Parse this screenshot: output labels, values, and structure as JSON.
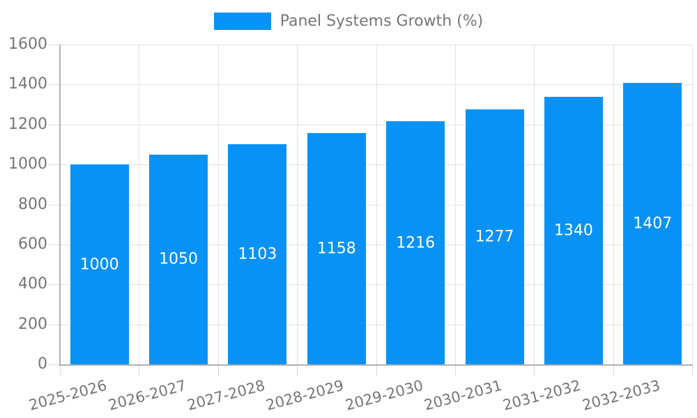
{
  "chart_data": {
    "type": "bar",
    "title": "",
    "legend": {
      "label": "Panel Systems Growth (%)",
      "position": "top"
    },
    "categories": [
      "2025-2026",
      "2026-2027",
      "2027-2028",
      "2028-2029",
      "2029-2030",
      "2030-2031",
      "2031-2032",
      "2032-2033"
    ],
    "series": [
      {
        "name": "Panel Systems Growth (%)",
        "values": [
          1000,
          1050,
          1103,
          1158,
          1216,
          1277,
          1340,
          1407
        ]
      }
    ],
    "xlabel": "",
    "ylabel": "",
    "ylim": [
      0,
      1600
    ],
    "yticks": [
      0,
      200,
      400,
      600,
      800,
      1000,
      1200,
      1400,
      1600
    ],
    "grid": true,
    "value_labels_visible": true,
    "x_label_rotation_deg": -15,
    "colors": {
      "bar": "#0992f5",
      "axis_text": "#757575",
      "grid_line": "#e2e2e2",
      "tick_line": "#d9d9d9",
      "axis_line": "#b0b0b0",
      "value_label": "#ffffff",
      "background": "#ffffff"
    }
  }
}
